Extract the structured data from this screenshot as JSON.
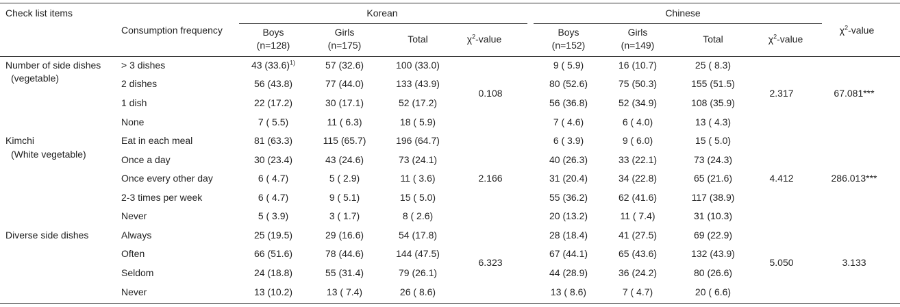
{
  "header": {
    "check_list_items": "Check list items",
    "consumption_frequency": "Consumption frequency",
    "korean": "Korean",
    "chinese": "Chinese",
    "boys": "Boys",
    "girls": "Girls",
    "total": "Total",
    "chi_square": "-value",
    "chi_symbol": "χ",
    "chi_sup": "2",
    "korean_boys_n": "(n=128)",
    "korean_girls_n": "(n=175)",
    "chinese_boys_n": "(n=152)",
    "chinese_girls_n": "(n=149)"
  },
  "footnote_marker": "1)",
  "groups": [
    {
      "item": "Number of side dishes",
      "item2": "(vegetable)",
      "korean_chi": "0.108",
      "chinese_chi": "2.317",
      "overall_chi": "67.081***",
      "rows": [
        {
          "freq": "> 3 dishes",
          "kb": "43 (33.6)",
          "kg": "57 (32.6)",
          "kt": "100 (33.0)",
          "cb": "9 ( 5.9)",
          "cg": "16 (10.7)",
          "ct": "25 ( 8.3)"
        },
        {
          "freq": "2 dishes",
          "kb": "56 (43.8)",
          "kg": "77 (44.0)",
          "kt": "133 (43.9)",
          "cb": "80 (52.6)",
          "cg": "75 (50.3)",
          "ct": "155 (51.5)"
        },
        {
          "freq": "1 dish",
          "kb": "22 (17.2)",
          "kg": "30 (17.1)",
          "kt": "52 (17.2)",
          "cb": "56 (36.8)",
          "cg": "52 (34.9)",
          "ct": "108 (35.9)"
        },
        {
          "freq": "None",
          "kb": "7 ( 5.5)",
          "kg": "11 ( 6.3)",
          "kt": "18 ( 5.9)",
          "cb": "7 ( 4.6)",
          "cg": "6 ( 4.0)",
          "ct": "13 ( 4.3)"
        }
      ]
    },
    {
      "item": "Kimchi",
      "item2": "(White vegetable)",
      "korean_chi": "2.166",
      "chinese_chi": "4.412",
      "overall_chi": "286.013***",
      "rows": [
        {
          "freq": "Eat in each meal",
          "kb": "81 (63.3)",
          "kg": "115 (65.7)",
          "kt": "196 (64.7)",
          "cb": "6 ( 3.9)",
          "cg": "9 ( 6.0)",
          "ct": "15 ( 5.0)"
        },
        {
          "freq": "Once a day",
          "kb": "30 (23.4)",
          "kg": "43 (24.6)",
          "kt": "73 (24.1)",
          "cb": "40 (26.3)",
          "cg": "33 (22.1)",
          "ct": "73 (24.3)"
        },
        {
          "freq": "Once every other day",
          "kb": "6 ( 4.7)",
          "kg": "5 ( 2.9)",
          "kt": "11 ( 3.6)",
          "cb": "31 (20.4)",
          "cg": "34 (22.8)",
          "ct": "65 (21.6)"
        },
        {
          "freq": "2-3 times per week",
          "kb": "6 ( 4.7)",
          "kg": "9 ( 5.1)",
          "kt": "15 ( 5.0)",
          "cb": "55 (36.2)",
          "cg": "62 (41.6)",
          "ct": "117 (38.9)"
        },
        {
          "freq": "Never",
          "kb": "5 ( 3.9)",
          "kg": "3 ( 1.7)",
          "kt": "8 ( 2.6)",
          "cb": "20 (13.2)",
          "cg": "11 ( 7.4)",
          "ct": "31 (10.3)"
        }
      ]
    },
    {
      "item": "Diverse side dishes",
      "item2": "",
      "korean_chi": "6.323",
      "chinese_chi": "5.050",
      "overall_chi": "3.133",
      "rows": [
        {
          "freq": "Always",
          "kb": "25 (19.5)",
          "kg": "29 (16.6)",
          "kt": "54 (17.8)",
          "cb": "28 (18.4)",
          "cg": "41 (27.5)",
          "ct": "69 (22.9)"
        },
        {
          "freq": "Often",
          "kb": "66 (51.6)",
          "kg": "78 (44.6)",
          "kt": "144 (47.5)",
          "cb": "67 (44.1)",
          "cg": "65 (43.6)",
          "ct": "132 (43.9)"
        },
        {
          "freq": "Seldom",
          "kb": "24 (18.8)",
          "kg": "55 (31.4)",
          "kt": "79 (26.1)",
          "cb": "44 (28.9)",
          "cg": "36 (24.2)",
          "ct": "80 (26.6)"
        },
        {
          "freq": "Never",
          "kb": "13 (10.2)",
          "kg": "13 ( 7.4)",
          "kt": "26 ( 8.6)",
          "cb": "13 ( 8.6)",
          "cg": "7 ( 4.7)",
          "ct": "20 ( 6.6)"
        }
      ]
    }
  ]
}
